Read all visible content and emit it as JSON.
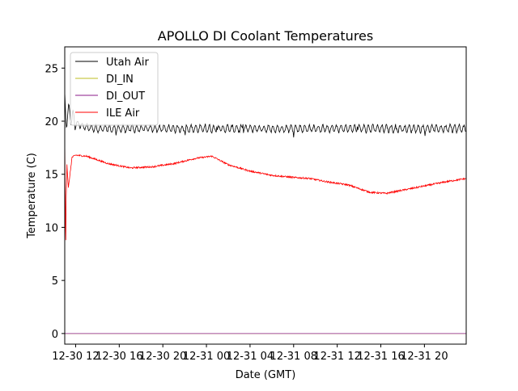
{
  "chart_data": {
    "type": "line",
    "title": "APOLLO DI Coolant Temperatures",
    "xlabel": "Date (GMT)",
    "ylabel": "Temperature (C)",
    "xlim": [
      "12-30 11:00",
      "12-31 23:50"
    ],
    "ylim": [
      -1,
      27
    ],
    "yticks": [
      0,
      5,
      10,
      15,
      20,
      25
    ],
    "xticks": [
      {
        "label": "12-30 12",
        "at": "12-30 12:00"
      },
      {
        "label": "12-30 16",
        "at": "12-30 16:00"
      },
      {
        "label": "12-30 20",
        "at": "12-30 20:00"
      },
      {
        "label": "12-31 00",
        "at": "12-31 00:00"
      },
      {
        "label": "12-31 04",
        "at": "12-31 04:00"
      },
      {
        "label": "12-31 08",
        "at": "12-31 08:00"
      },
      {
        "label": "12-31 12",
        "at": "12-31 12:00"
      },
      {
        "label": "12-31 16",
        "at": "12-31 16:00"
      },
      {
        "label": "12-31 20",
        "at": "12-31 20:00"
      }
    ],
    "grid": false,
    "legend_position": "top-left",
    "series": [
      {
        "name": "Utah Air",
        "color": "#000000",
        "x": [
          "12-30 11:00",
          "12-30 11:10",
          "12-30 11:25",
          "12-30 12:00",
          "12-30 13:00",
          "12-30 14:00",
          "12-30 16:00",
          "12-30 20:00",
          "12-31 00:00",
          "12-31 04:00",
          "12-31 08:00",
          "12-31 12:00",
          "12-31 16:00",
          "12-31 20:00",
          "12-31 23:50"
        ],
        "y": [
          22.2,
          20.0,
          20.8,
          19.8,
          19.4,
          19.3,
          19.3,
          19.3,
          19.3,
          19.3,
          19.3,
          19.3,
          19.3,
          19.3,
          19.3
        ]
      },
      {
        "name": "DI_IN",
        "color": "#bcbd22",
        "x": [
          "12-30 11:00",
          "12-31 23:50"
        ],
        "y": [
          0,
          0
        ]
      },
      {
        "name": "DI_OUT",
        "color": "#8b1a89",
        "x": [
          "12-30 11:00",
          "12-31 23:50"
        ],
        "y": [
          0,
          0
        ]
      },
      {
        "name": "ILE Air",
        "color": "#ff0000",
        "x": [
          "12-30 11:00",
          "12-30 11:05",
          "12-30 11:10",
          "12-30 11:20",
          "12-30 11:40",
          "12-30 12:00",
          "12-30 13:00",
          "12-30 15:00",
          "12-30 17:00",
          "12-30 19:00",
          "12-30 21:00",
          "12-30 23:00",
          "12-31 00:30",
          "12-31 02:00",
          "12-31 04:00",
          "12-31 06:00",
          "12-31 08:00",
          "12-31 09:30",
          "12-31 11:00",
          "12-31 13:00",
          "12-31 15:00",
          "12-31 16:30",
          "12-31 18:00",
          "12-31 20:00",
          "12-31 22:00",
          "12-31 23:50"
        ],
        "y": [
          17.0,
          10.5,
          16.5,
          13.7,
          16.6,
          16.8,
          16.7,
          16.0,
          15.6,
          15.7,
          16.0,
          16.5,
          16.7,
          15.9,
          15.3,
          14.9,
          14.7,
          14.6,
          14.3,
          14.0,
          13.3,
          13.2,
          13.5,
          13.9,
          14.3,
          14.6
        ]
      }
    ]
  }
}
